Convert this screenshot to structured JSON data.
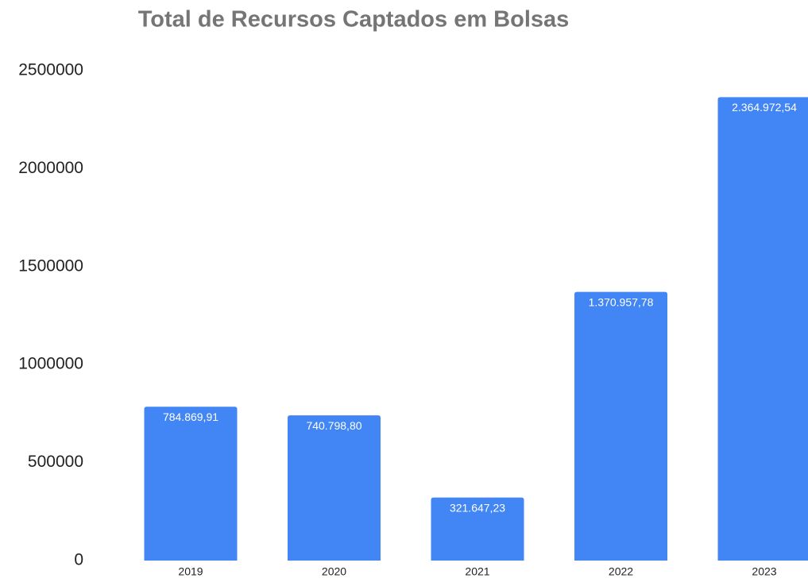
{
  "chart_data": {
    "type": "bar",
    "title": "Total de Recursos Captados em Bolsas",
    "categories": [
      "2019",
      "2020",
      "2021",
      "2022",
      "2023"
    ],
    "values": [
      784869.91,
      740798.8,
      321647.23,
      1370957.78,
      2364972.54
    ],
    "value_labels": [
      "784.869,91",
      "740.798,80",
      "321.647,23",
      "1.370.957,78",
      "2.364.972,54"
    ],
    "color": "#4285f4",
    "ylim": [
      0,
      2500000
    ],
    "yticks": [
      0,
      500000,
      1000000,
      1500000,
      2000000,
      2500000
    ],
    "grid": false
  }
}
